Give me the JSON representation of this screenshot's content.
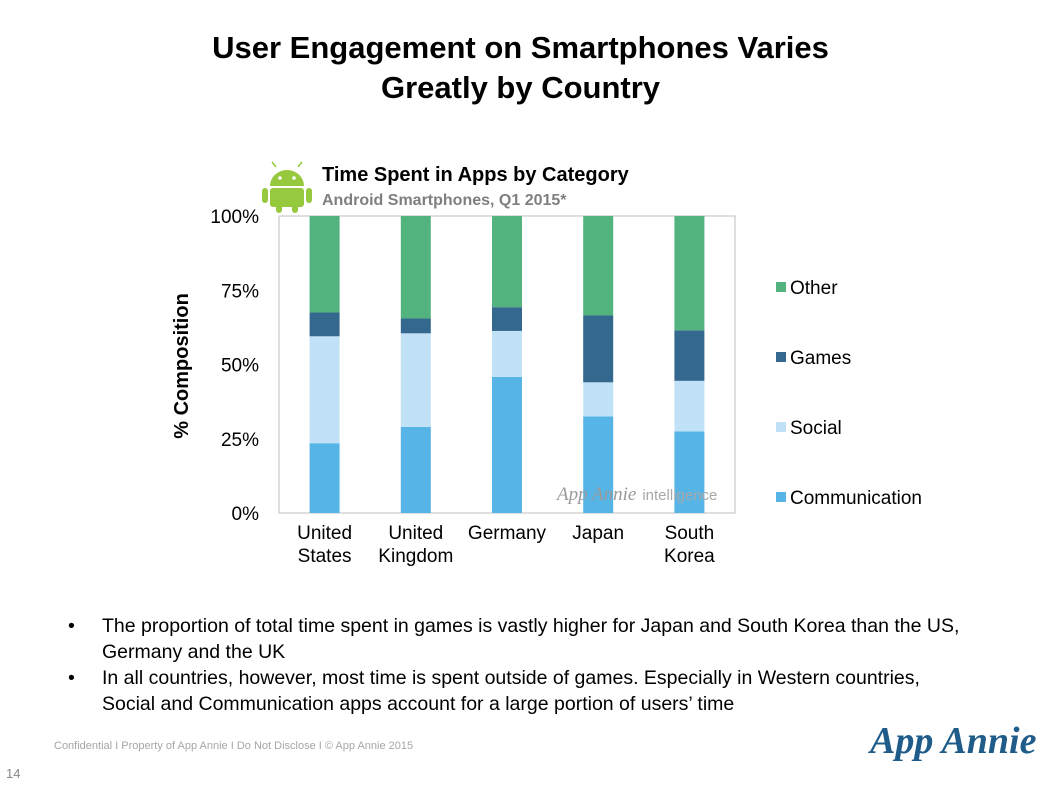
{
  "slide": {
    "title_line1": "User Engagement on Smartphones Varies",
    "title_line2": "Greatly by Country"
  },
  "chart_data": {
    "type": "bar",
    "stacked": true,
    "title": "Time Spent in Apps by Category",
    "subtitle": "Android Smartphones, Q1 2015*",
    "xlabel": "",
    "ylabel": "% Composition",
    "ylim": [
      0,
      100
    ],
    "yticks": [
      "0%",
      "25%",
      "50%",
      "75%",
      "100%"
    ],
    "yticks_values": [
      0,
      25,
      50,
      75,
      100
    ],
    "categories": [
      [
        "United",
        "States"
      ],
      [
        "United",
        "Kingdom"
      ],
      [
        "Germany"
      ],
      [
        "Japan"
      ],
      [
        "South",
        "Korea"
      ]
    ],
    "series": [
      {
        "name": "Communication",
        "color": "#56b4e6",
        "values": [
          23.5,
          29,
          45.8,
          32.5,
          27.5
        ]
      },
      {
        "name": "Social",
        "color": "#c1e2f6",
        "values": [
          36,
          31.5,
          15.5,
          11.5,
          17
        ]
      },
      {
        "name": "Games",
        "color": "#34688f",
        "values": [
          8,
          5,
          8,
          22.5,
          17
        ]
      },
      {
        "name": "Other",
        "color": "#52b37f",
        "values": [
          32.5,
          34.5,
          30.7,
          33.5,
          38.5
        ]
      }
    ],
    "legend_position": "right",
    "legend_order": [
      "Other",
      "Games",
      "Social",
      "Communication"
    ],
    "grid": false,
    "icon": "android-robot-icon",
    "watermark": "App Annie intelligence"
  },
  "notes": {
    "bullet_1": "The proportion of total time spent in games is vastly higher for Japan and South Korea than the US, Germany and the UK",
    "bullet_2": "In all countries, however, most time is spent outside of games. Especially in Western countries, Social and Communication apps account for a large portion of users’ time"
  },
  "footer": {
    "text": "Confidential  I  Property of App Annie  I  Do Not Disclose  I  © App Annie 2015",
    "page_number": "14",
    "logo": "App Annie"
  }
}
